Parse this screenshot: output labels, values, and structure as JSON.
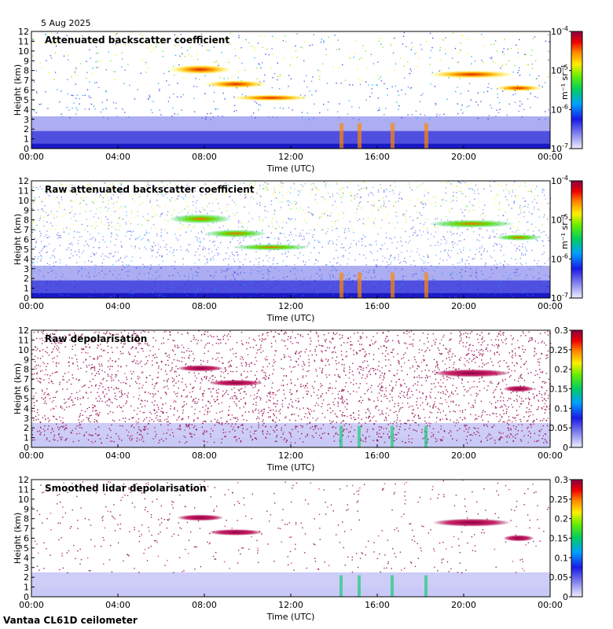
{
  "date": "5 Aug 2025",
  "footer": "Vantaa CL61D ceilometer",
  "chart_data": [
    {
      "type": "heatmap",
      "title": "Attenuated backscatter coefficient",
      "xlabel": "Time (UTC)",
      "ylabel": "Height (km)",
      "x_ticks": [
        "00:00",
        "04:00",
        "08:00",
        "12:00",
        "16:00",
        "20:00",
        "00:00"
      ],
      "y_ticks": [
        "0",
        "1",
        "2",
        "3",
        "4",
        "5",
        "6",
        "7",
        "8",
        "9",
        "10",
        "11",
        "12"
      ],
      "ylim": [
        0,
        12
      ],
      "colorbar": {
        "scale": "log",
        "range": [
          1e-07,
          0.0001
        ],
        "unit": "m⁻¹ sr⁻¹",
        "ticks": [
          {
            "base": "10",
            "exp": "-7"
          },
          {
            "base": "10",
            "exp": "-6"
          },
          {
            "base": "10",
            "exp": "-5"
          },
          {
            "base": "10",
            "exp": "-4"
          }
        ]
      }
    },
    {
      "type": "heatmap",
      "title": "Raw attenuated backscatter coefficient",
      "xlabel": "Time (UTC)",
      "ylabel": "Height (km)",
      "x_ticks": [
        "00:00",
        "04:00",
        "08:00",
        "12:00",
        "16:00",
        "20:00",
        "00:00"
      ],
      "y_ticks": [
        "0",
        "1",
        "2",
        "3",
        "4",
        "5",
        "6",
        "7",
        "8",
        "9",
        "10",
        "11",
        "12"
      ],
      "ylim": [
        0,
        12
      ],
      "colorbar": {
        "scale": "log",
        "range": [
          1e-07,
          0.0001
        ],
        "unit": "m⁻¹ sr⁻¹",
        "ticks": [
          {
            "base": "10",
            "exp": "-7"
          },
          {
            "base": "10",
            "exp": "-6"
          },
          {
            "base": "10",
            "exp": "-5"
          },
          {
            "base": "10",
            "exp": "-4"
          }
        ]
      }
    },
    {
      "type": "heatmap",
      "title": "Raw depolarisation",
      "xlabel": "Time (UTC)",
      "ylabel": "Height (km)",
      "x_ticks": [
        "00:00",
        "04:00",
        "08:00",
        "12:00",
        "16:00",
        "20:00",
        "00:00"
      ],
      "y_ticks": [
        "0",
        "1",
        "2",
        "3",
        "4",
        "5",
        "6",
        "7",
        "8",
        "9",
        "10",
        "11",
        "12"
      ],
      "ylim": [
        0,
        12
      ],
      "colorbar": {
        "scale": "linear",
        "range": [
          0,
          0.3
        ],
        "unit": "",
        "ticks": [
          "0",
          "0.05",
          "0.1",
          "0.15",
          "0.2",
          "0.25",
          "0.3"
        ]
      }
    },
    {
      "type": "heatmap",
      "title": "Smoothed lidar depolarisation",
      "xlabel": "Time (UTC)",
      "ylabel": "Height (km)",
      "x_ticks": [
        "00:00",
        "04:00",
        "08:00",
        "12:00",
        "16:00",
        "20:00",
        "00:00"
      ],
      "y_ticks": [
        "0",
        "1",
        "2",
        "3",
        "4",
        "5",
        "6",
        "7",
        "8",
        "9",
        "10",
        "11",
        "12"
      ],
      "ylim": [
        0,
        12
      ],
      "colorbar": {
        "scale": "linear",
        "range": [
          0,
          0.3
        ],
        "unit": "",
        "ticks": [
          "0",
          "0.05",
          "0.1",
          "0.15",
          "0.2",
          "0.25",
          "0.3"
        ]
      }
    }
  ]
}
